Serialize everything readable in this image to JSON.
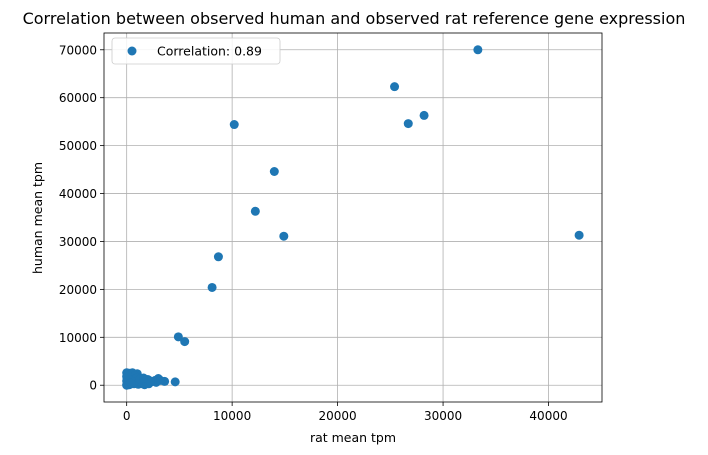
{
  "chart_data": {
    "type": "scatter",
    "title": "Correlation between observed human and observed rat reference gene expression",
    "xlabel": "rat mean tpm",
    "ylabel": "human mean tpm",
    "xlim": [
      -2150,
      45070
    ],
    "ylim": [
      -3500,
      73500
    ],
    "xticks": [
      0,
      10000,
      20000,
      30000,
      40000
    ],
    "yticks": [
      0,
      10000,
      20000,
      30000,
      40000,
      50000,
      60000,
      70000
    ],
    "grid": true,
    "legend_position": "upper-left",
    "color": "#1f77b4",
    "series": [
      {
        "name": "Correlation: 0.89",
        "points": [
          [
            33300,
            70000
          ],
          [
            25400,
            62300
          ],
          [
            28200,
            56300
          ],
          [
            26700,
            54600
          ],
          [
            10200,
            54400
          ],
          [
            14000,
            44600
          ],
          [
            12200,
            36300
          ],
          [
            14900,
            31100
          ],
          [
            42900,
            31300
          ],
          [
            8700,
            26800
          ],
          [
            8100,
            20400
          ],
          [
            4900,
            10100
          ],
          [
            5500,
            9100
          ],
          [
            4600,
            700
          ],
          [
            3600,
            800
          ],
          [
            3000,
            1400
          ],
          [
            2700,
            1000
          ],
          [
            2300,
            700
          ],
          [
            2000,
            1200
          ],
          [
            1800,
            400
          ],
          [
            1600,
            900
          ],
          [
            1400,
            1300
          ],
          [
            1200,
            600
          ],
          [
            1000,
            2400
          ],
          [
            900,
            1700
          ],
          [
            800,
            900
          ],
          [
            700,
            300
          ],
          [
            600,
            2200
          ],
          [
            500,
            1500
          ],
          [
            400,
            800
          ],
          [
            300,
            2500
          ],
          [
            200,
            1900
          ],
          [
            150,
            1100
          ],
          [
            100,
            500
          ],
          [
            50,
            2400
          ],
          [
            30,
            1300
          ],
          [
            10,
            200
          ],
          [
            0,
            2600
          ],
          [
            0,
            1800
          ],
          [
            0,
            900
          ],
          [
            0,
            0
          ],
          [
            250,
            100
          ],
          [
            450,
            300
          ],
          [
            650,
            1100
          ],
          [
            850,
            400
          ],
          [
            1100,
            200
          ],
          [
            1300,
            600
          ],
          [
            1500,
            300
          ],
          [
            1700,
            100
          ],
          [
            1900,
            500
          ],
          [
            2100,
            300
          ],
          [
            2500,
            800
          ],
          [
            2800,
            600
          ],
          [
            3200,
            1000
          ],
          [
            350,
            2100
          ],
          [
            550,
            2600
          ],
          [
            750,
            2000
          ],
          [
            950,
            1500
          ],
          [
            1150,
            900
          ],
          [
            120,
            1600
          ],
          [
            80,
            2200
          ],
          [
            700,
            700
          ],
          [
            1250,
            1300
          ],
          [
            2200,
            900
          ],
          [
            1600,
            1500
          ],
          [
            400,
            400
          ]
        ]
      }
    ]
  }
}
